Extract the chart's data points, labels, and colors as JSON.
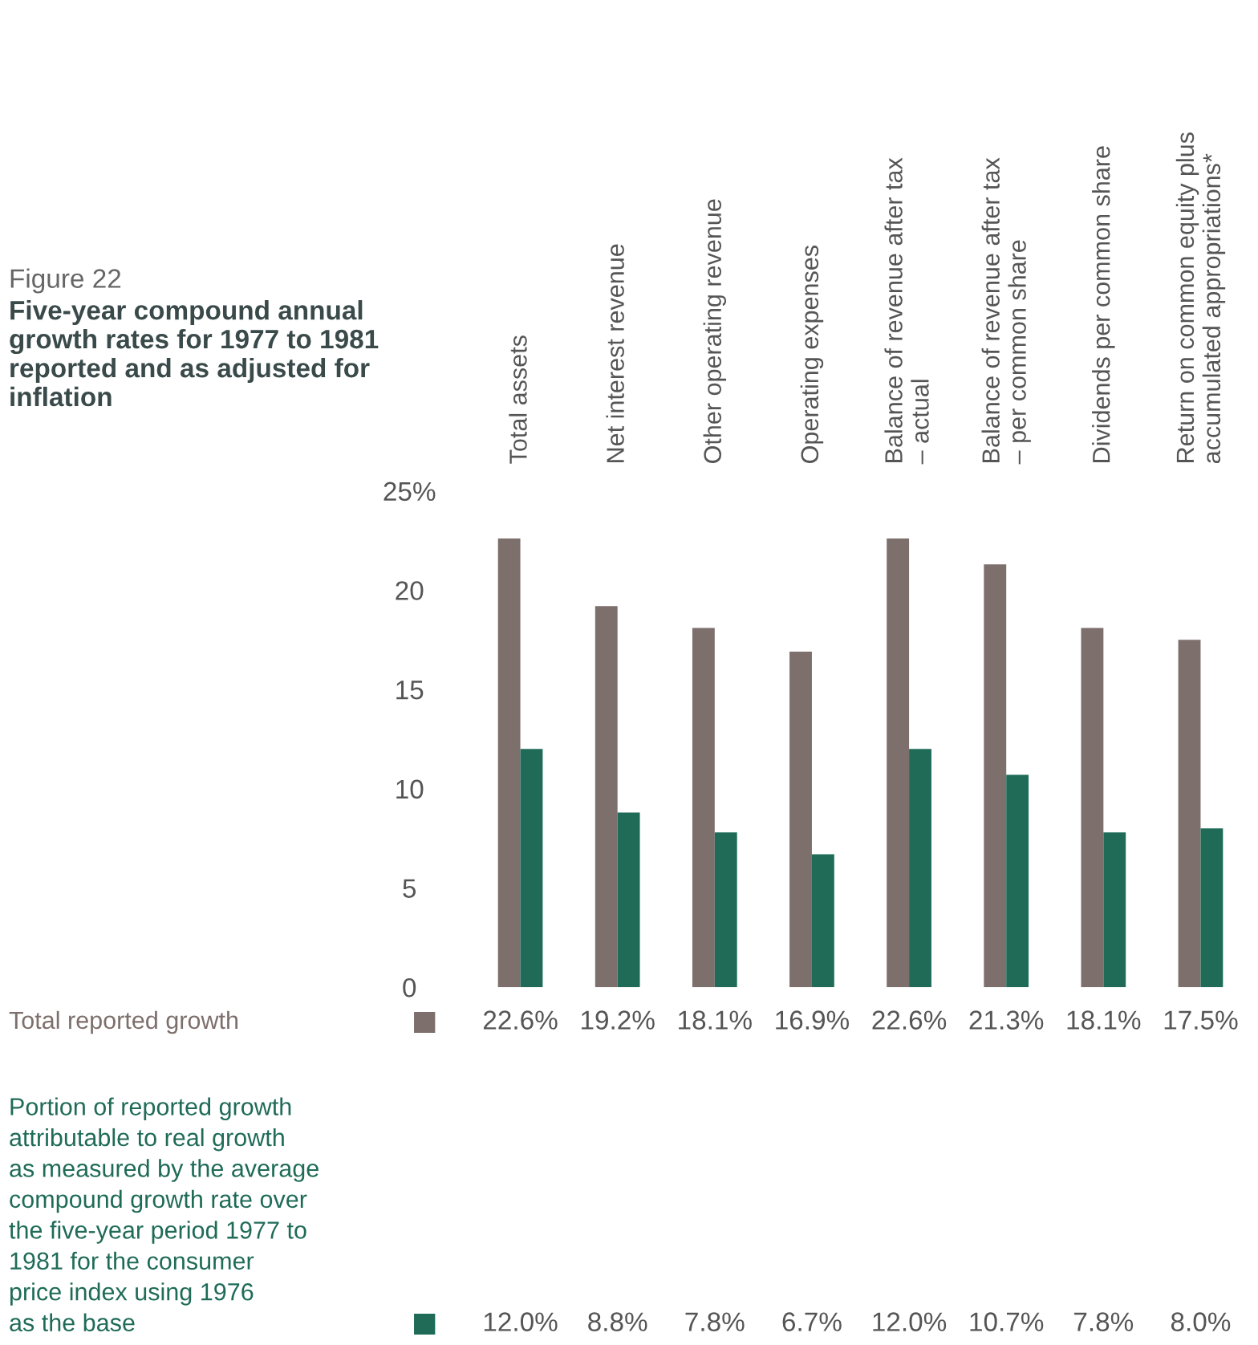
{
  "chart_data": {
    "type": "bar",
    "title": "Figure 22",
    "subtitle": "Five-year compound annual\ngrowth rates for 1977 to 1981\nreported and as adjusted for\ninflation",
    "categories": [
      "Total assets",
      "Net interest revenue",
      "Other operating revenue",
      "Operating expenses",
      "Balance of revenue after tax\n– actual",
      "Balance of revenue after tax\n– per common share",
      "Dividends per common share",
      "Return on common equity plus\naccumulated appropriations*"
    ],
    "series": [
      {
        "name": "Total reported growth",
        "color": "#7d6f6c",
        "values": [
          22.6,
          19.2,
          18.1,
          16.9,
          22.6,
          21.3,
          18.1,
          17.5
        ],
        "value_labels": [
          "22.6%",
          "19.2%",
          "18.1%",
          "16.9%",
          "22.6%",
          "21.3%",
          "18.1%",
          "17.5%"
        ]
      },
      {
        "name": "Portion of reported growth\nattributable to real growth\nas measured by the average\ncompound growth rate over\nthe five-year period 1977 to\n1981 for the consumer\nprice index using 1976\nas the base",
        "color": "#1f6b58",
        "values": [
          12.0,
          8.8,
          7.8,
          6.7,
          12.0,
          10.7,
          7.8,
          8.0
        ],
        "value_labels": [
          "12.0%",
          "8.8%",
          "7.8%",
          "6.7%",
          "12.0%",
          "10.7%",
          "7.8%",
          "8.0%"
        ]
      }
    ],
    "ylim": [
      0,
      25
    ],
    "yticks": [
      0,
      5,
      10,
      15,
      {
        "value": 25,
        "label": "25%"
      },
      20
    ],
    "grid": false,
    "legend": "left"
  }
}
